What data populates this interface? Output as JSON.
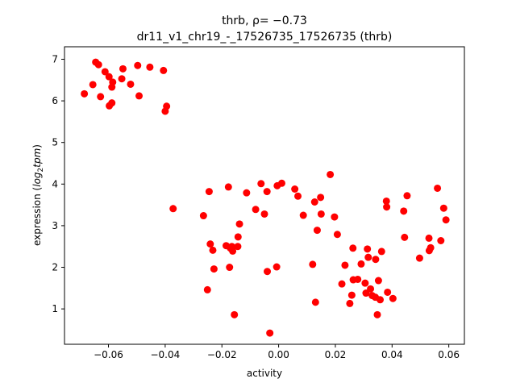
{
  "chart_data": {
    "type": "scatter",
    "title_main": "thrb, ρ= −0.73",
    "title_sub": "dr11_v1_chr19_-_17526735_17526735 (thrb)",
    "xlabel": "activity",
    "ylabel_prefix": "expression (",
    "ylabel_italic": "log",
    "ylabel_sub": "2",
    "ylabel_italic2": "tpm",
    "ylabel_suffix": ")",
    "xlim": [
      -0.0755,
      0.0655
    ],
    "ylim": [
      0.15,
      7.3
    ],
    "xticks": [
      -0.06,
      -0.04,
      -0.02,
      0.0,
      0.02,
      0.04,
      0.06
    ],
    "xtick_labels": [
      "−0.06",
      "−0.04",
      "−0.02",
      "0.00",
      "0.02",
      "0.04",
      "0.06"
    ],
    "yticks": [
      1,
      2,
      3,
      4,
      5,
      6,
      7
    ],
    "ytick_labels": [
      "1",
      "2",
      "3",
      "4",
      "5",
      "6",
      "7"
    ],
    "marker_color": "#ff0000",
    "grid": false,
    "points": [
      [
        -0.0685,
        6.17
      ],
      [
        -0.0655,
        6.39
      ],
      [
        -0.0645,
        6.93
      ],
      [
        -0.0635,
        6.87
      ],
      [
        -0.0628,
        6.1
      ],
      [
        -0.0612,
        6.7
      ],
      [
        -0.0598,
        6.58
      ],
      [
        -0.0597,
        5.88
      ],
      [
        -0.0588,
        5.95
      ],
      [
        -0.0588,
        6.33
      ],
      [
        -0.0585,
        6.45
      ],
      [
        -0.0553,
        6.53
      ],
      [
        -0.0549,
        6.77
      ],
      [
        -0.0522,
        6.4
      ],
      [
        -0.0497,
        6.85
      ],
      [
        -0.0492,
        6.12
      ],
      [
        -0.0454,
        6.81
      ],
      [
        -0.0406,
        6.73
      ],
      [
        -0.04,
        5.75
      ],
      [
        -0.0395,
        5.87
      ],
      [
        -0.0372,
        3.41
      ],
      [
        -0.0265,
        3.24
      ],
      [
        -0.0251,
        1.46
      ],
      [
        -0.0245,
        3.82
      ],
      [
        -0.0241,
        2.56
      ],
      [
        -0.0232,
        2.41
      ],
      [
        -0.0228,
        1.96
      ],
      [
        -0.0185,
        2.52
      ],
      [
        -0.0177,
        3.93
      ],
      [
        -0.0173,
        2.0
      ],
      [
        -0.017,
        2.46
      ],
      [
        -0.0165,
        2.5
      ],
      [
        -0.0162,
        2.39
      ],
      [
        -0.0156,
        0.86
      ],
      [
        -0.0144,
        2.5
      ],
      [
        -0.0143,
        2.73
      ],
      [
        -0.0138,
        3.04
      ],
      [
        -0.0113,
        3.79
      ],
      [
        -0.0081,
        3.39
      ],
      [
        -0.0062,
        4.01
      ],
      [
        -0.005,
        3.28
      ],
      [
        -0.0041,
        3.82
      ],
      [
        -0.004,
        1.9
      ],
      [
        -0.0031,
        0.42
      ],
      [
        -0.0007,
        2.01
      ],
      [
        -0.0005,
        3.96
      ],
      [
        0.0011,
        4.02
      ],
      [
        0.0057,
        3.88
      ],
      [
        0.0068,
        3.71
      ],
      [
        0.0087,
        3.25
      ],
      [
        0.012,
        2.07
      ],
      [
        0.0127,
        3.57
      ],
      [
        0.013,
        1.16
      ],
      [
        0.0136,
        2.89
      ],
      [
        0.0148,
        3.68
      ],
      [
        0.015,
        3.28
      ],
      [
        0.0182,
        4.23
      ],
      [
        0.0197,
        3.21
      ],
      [
        0.0207,
        2.79
      ],
      [
        0.0223,
        1.6
      ],
      [
        0.0234,
        2.05
      ],
      [
        0.0251,
        1.13
      ],
      [
        0.0258,
        1.33
      ],
      [
        0.0262,
        2.46
      ],
      [
        0.0263,
        1.7
      ],
      [
        0.0279,
        1.71
      ],
      [
        0.0291,
        2.08
      ],
      [
        0.0305,
        1.62
      ],
      [
        0.0308,
        1.38
      ],
      [
        0.0313,
        2.44
      ],
      [
        0.0316,
        2.24
      ],
      [
        0.0324,
        1.48
      ],
      [
        0.033,
        1.32
      ],
      [
        0.0341,
        1.28
      ],
      [
        0.0342,
        2.19
      ],
      [
        0.0348,
        0.86
      ],
      [
        0.0352,
        1.68
      ],
      [
        0.0358,
        1.22
      ],
      [
        0.0363,
        2.38
      ],
      [
        0.038,
        3.59
      ],
      [
        0.0381,
        3.45
      ],
      [
        0.0384,
        1.4
      ],
      [
        0.0403,
        1.25
      ],
      [
        0.0441,
        3.35
      ],
      [
        0.0444,
        2.72
      ],
      [
        0.0453,
        3.72
      ],
      [
        0.0497,
        2.22
      ],
      [
        0.053,
        2.7
      ],
      [
        0.0531,
        2.4
      ],
      [
        0.0536,
        2.47
      ],
      [
        0.056,
        3.9
      ],
      [
        0.0572,
        2.64
      ],
      [
        0.0582,
        3.42
      ],
      [
        0.059,
        3.14
      ]
    ]
  }
}
